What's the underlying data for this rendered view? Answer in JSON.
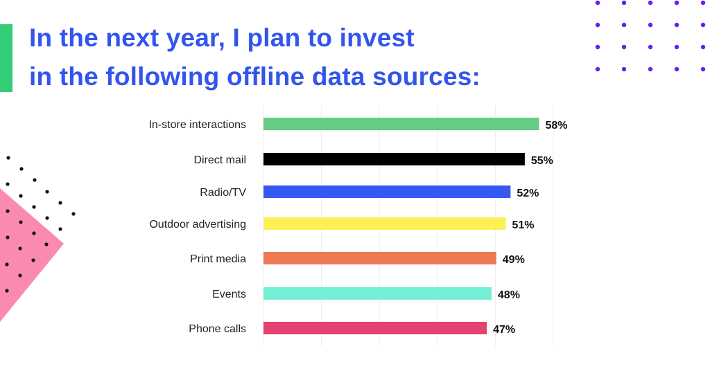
{
  "title_lines": [
    "In the next year, I plan to invest",
    "in the following offline data sources:"
  ],
  "colors": {
    "title": "#3355ee",
    "accent": "#33cc77",
    "triangle": "#fb8ab0",
    "dots_purple": "#6a1df0",
    "dots_black": "#111111"
  },
  "chart_data": {
    "type": "bar",
    "orientation": "horizontal",
    "title": "In the next year, I plan to invest in the following offline data sources:",
    "categories": [
      "In-store interactions",
      "Direct mail",
      "Radio/TV",
      "Outdoor advertising",
      "Print media",
      "Events",
      "Phone calls"
    ],
    "values": [
      58,
      55,
      52,
      51,
      49,
      48,
      47
    ],
    "labels": [
      "58%",
      "55%",
      "52%",
      "51%",
      "49%",
      "48%",
      "47%"
    ],
    "colors": [
      "#66cc84",
      "#000000",
      "#3558f3",
      "#fdf057",
      "#ee7a55",
      "#74efd6",
      "#e44271"
    ],
    "unit": "%",
    "xlim": [
      0,
      61
    ],
    "grid": true,
    "xlabel": "",
    "ylabel": ""
  }
}
